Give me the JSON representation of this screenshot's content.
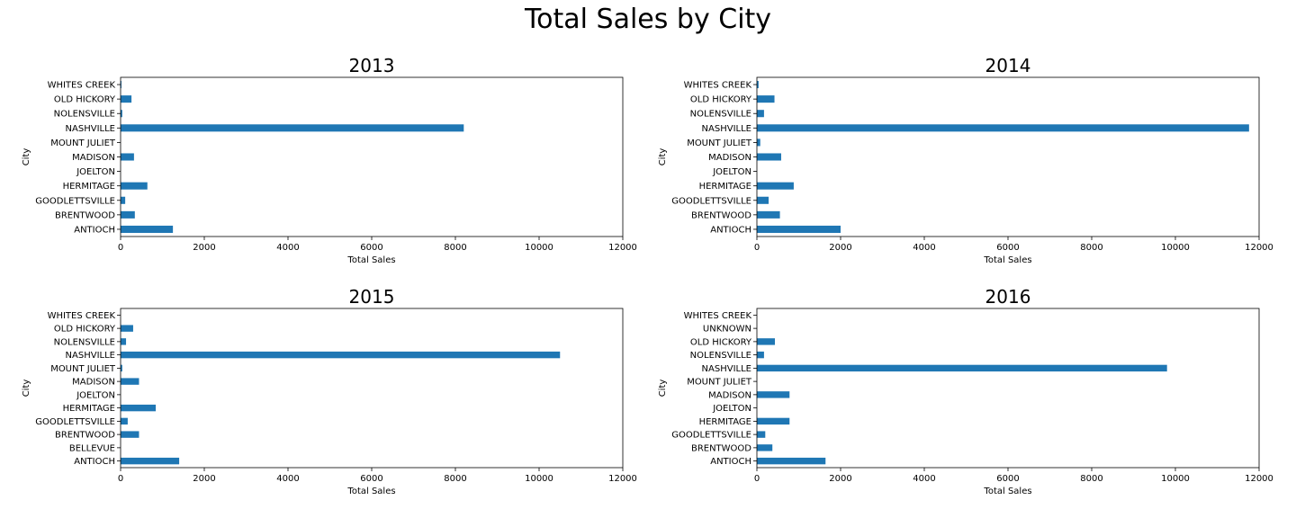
{
  "figure": {
    "title": "Total Sales by City",
    "bar_color": "#1f77b4"
  },
  "chart_data": [
    {
      "type": "bar",
      "orientation": "horizontal",
      "title": "2013",
      "xlabel": "Total Sales",
      "ylabel": "City",
      "xlim": [
        0,
        12000
      ],
      "xticks": [
        0,
        2000,
        4000,
        6000,
        8000,
        10000,
        12000
      ],
      "grid": false,
      "categories": [
        "ANTIOCH",
        "BRENTWOOD",
        "GOODLETTSVILLE",
        "HERMITAGE",
        "JOELTON",
        "MADISON",
        "MOUNT JULIET",
        "NASHVILLE",
        "NOLENSVILLE",
        "OLD HICKORY",
        "WHITES CREEK"
      ],
      "values": [
        1250,
        340,
        110,
        640,
        0,
        320,
        0,
        8200,
        40,
        260,
        20
      ]
    },
    {
      "type": "bar",
      "orientation": "horizontal",
      "title": "2014",
      "xlabel": "Total Sales",
      "ylabel": "City",
      "xlim": [
        0,
        12000
      ],
      "xticks": [
        0,
        2000,
        4000,
        6000,
        8000,
        10000,
        12000
      ],
      "grid": false,
      "categories": [
        "ANTIOCH",
        "BRENTWOOD",
        "GOODLETTSVILLE",
        "HERMITAGE",
        "JOELTON",
        "MADISON",
        "MOUNT JULIET",
        "NASHVILLE",
        "NOLENSVILLE",
        "OLD HICKORY",
        "WHITES CREEK"
      ],
      "values": [
        2000,
        550,
        280,
        880,
        0,
        580,
        80,
        11760,
        170,
        420,
        40
      ]
    },
    {
      "type": "bar",
      "orientation": "horizontal",
      "title": "2015",
      "xlabel": "Total Sales",
      "ylabel": "City",
      "xlim": [
        0,
        12000
      ],
      "xticks": [
        0,
        2000,
        4000,
        6000,
        8000,
        10000,
        12000
      ],
      "grid": false,
      "categories": [
        "ANTIOCH",
        "BELLEVUE",
        "BRENTWOOD",
        "GOODLETTSVILLE",
        "HERMITAGE",
        "JOELTON",
        "MADISON",
        "MOUNT JULIET",
        "NASHVILLE",
        "NOLENSVILLE",
        "OLD HICKORY",
        "WHITES CREEK"
      ],
      "values": [
        1400,
        0,
        440,
        170,
        840,
        0,
        440,
        40,
        10500,
        130,
        300,
        0
      ]
    },
    {
      "type": "bar",
      "orientation": "horizontal",
      "title": "2016",
      "xlabel": "Total Sales",
      "ylabel": "City",
      "xlim": [
        0,
        12000
      ],
      "xticks": [
        0,
        2000,
        4000,
        6000,
        8000,
        10000,
        12000
      ],
      "grid": false,
      "categories": [
        "ANTIOCH",
        "BRENTWOOD",
        "GOODLETTSVILLE",
        "HERMITAGE",
        "JOELTON",
        "MADISON",
        "MOUNT JULIET",
        "NASHVILLE",
        "NOLENSVILLE",
        "OLD HICKORY",
        "UNKNOWN",
        "WHITES CREEK"
      ],
      "values": [
        1640,
        370,
        200,
        780,
        0,
        780,
        0,
        9800,
        170,
        430,
        0,
        0
      ]
    }
  ]
}
